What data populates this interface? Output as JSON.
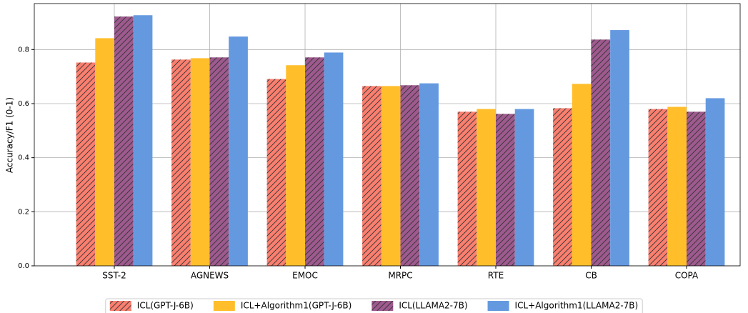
{
  "chart_data": {
    "type": "bar",
    "ylabel": "Accuracy/F1 (0-1)",
    "categories": [
      "SST-2",
      "AGNEWS",
      "EMOC",
      "MRPC",
      "RTE",
      "CB",
      "COPA"
    ],
    "series": [
      {
        "name": "ICL(GPT-J-6B)",
        "color": "#fa7f6f",
        "hatch": "//",
        "values": [
          0.752,
          0.763,
          0.691,
          0.665,
          0.57,
          0.583,
          0.58
        ]
      },
      {
        "name": "ICL+Algorithm1(GPT-J-6B)",
        "color": "#ffbe2a",
        "values": [
          0.842,
          0.768,
          0.742,
          0.665,
          0.58,
          0.673,
          0.588
        ]
      },
      {
        "name": "ICL(LLAMA2-7B)",
        "color": "#9e5a8e",
        "hatch": "//",
        "values": [
          0.922,
          0.771,
          0.771,
          0.668,
          0.562,
          0.837,
          0.57
        ]
      },
      {
        "name": "ICL+Algorithm1(LLAMA2-7B)",
        "color": "#6499e0",
        "values": [
          0.927,
          0.848,
          0.789,
          0.675,
          0.58,
          0.872,
          0.62
        ]
      }
    ],
    "ylim": [
      0,
      0.97
    ],
    "yticks": [
      {
        "value": 0,
        "label": "0.0"
      },
      0.2,
      0.4,
      0.6,
      0.8
    ],
    "grid": true,
    "legend": "bottom"
  }
}
